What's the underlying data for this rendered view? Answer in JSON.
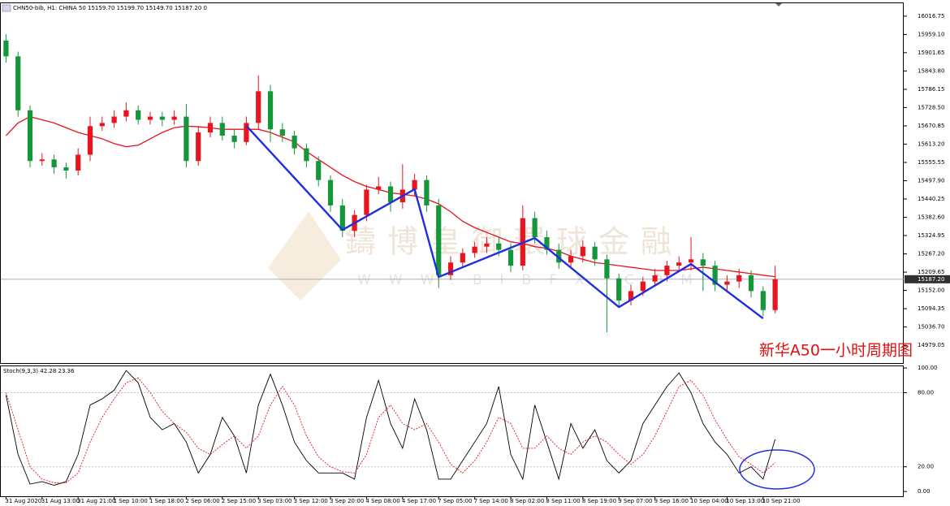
{
  "chart_data": [
    {
      "type": "candlestick",
      "header": "CHN50-bib, H1:  CHINA 50  15159.70 15199.70 15149.70 15187.20  0",
      "watermark": "鑄博皇御環球金融",
      "watermark_url": "WWW.BIBFX.COM",
      "annotation": "新华A50一小时周期图",
      "categories": [
        "31 Aug 2020",
        null,
        null,
        "31 Aug 13:00",
        null,
        null,
        "31 Aug 21:00",
        null,
        null,
        "1 Sep 10:00",
        null,
        null,
        "1 Sep 18:00",
        null,
        null,
        "2 Sep 06:00",
        null,
        null,
        "2 Sep 15:00",
        null,
        null,
        "3 Sep 03:00",
        null,
        null,
        "3 Sep 12:00",
        null,
        null,
        "3 Sep 20:00",
        null,
        null,
        "4 Sep 08:00",
        null,
        null,
        "4 Sep 17:00",
        null,
        null,
        "7 Sep 05:00",
        null,
        null,
        "7 Sep 14:00",
        null,
        null,
        "8 Sep 02:00",
        null,
        null,
        "8 Sep 11:00",
        null,
        null,
        "8 Sep 19:00",
        null,
        null,
        "9 Sep 07:00",
        null,
        null,
        "9 Sep 16:00",
        null,
        null,
        "10 Sep 04:00",
        null,
        null,
        "10 Sep 13:00",
        null,
        null,
        "10 Sep 21:00",
        null
      ],
      "xlim": [
        -0.5,
        74.7
      ],
      "candles": {
        "up_color": "#e8141e",
        "down_color": "#16963a",
        "open": [
          15940,
          15890,
          15720,
          15560,
          15565,
          15540,
          15530,
          15580,
          15670,
          15680,
          15700,
          15720,
          15690,
          15700,
          15690,
          15700,
          15560,
          15650,
          15680,
          15640,
          15620,
          15680,
          15780,
          15660,
          15640,
          15600,
          15560,
          15500,
          15420,
          15340,
          15390,
          15470,
          15480,
          15430,
          15470,
          15500,
          15420,
          15200,
          15240,
          15270,
          15290,
          15300,
          15280,
          15230,
          15380,
          15320,
          15280,
          15240,
          15260,
          15290,
          15250,
          15190,
          15120,
          15150,
          15180,
          15200,
          15230,
          15240,
          15250,
          15230,
          15170,
          15180,
          15200,
          15150,
          15090
        ],
        "high": [
          15960,
          15905,
          15735,
          15585,
          15580,
          15555,
          15600,
          15700,
          15700,
          15720,
          15745,
          15735,
          15715,
          15715,
          15720,
          15740,
          15670,
          15700,
          15700,
          15660,
          15700,
          15830,
          15800,
          15680,
          15655,
          15615,
          15575,
          15515,
          15440,
          15405,
          15485,
          15510,
          15495,
          15550,
          15520,
          15515,
          15440,
          15260,
          15285,
          15305,
          15320,
          15320,
          15300,
          15420,
          15400,
          15340,
          15300,
          15280,
          15310,
          15305,
          15265,
          15205,
          15170,
          15195,
          15220,
          15245,
          15260,
          15320,
          15270,
          15245,
          15200,
          15220,
          15215,
          15165,
          15230
        ],
        "low": [
          15870,
          15700,
          15540,
          15545,
          15520,
          15505,
          15515,
          15560,
          15655,
          15665,
          15685,
          15675,
          15675,
          15670,
          15675,
          15540,
          15545,
          15635,
          15625,
          15600,
          15610,
          15660,
          15620,
          15620,
          15580,
          15540,
          15480,
          15400,
          15320,
          15320,
          15370,
          15455,
          15400,
          15410,
          15450,
          15400,
          15160,
          15185,
          15225,
          15255,
          15270,
          15260,
          15210,
          15215,
          15300,
          15265,
          15220,
          15225,
          15240,
          15230,
          15020,
          15100,
          15105,
          15135,
          15165,
          15180,
          15210,
          15215,
          15150,
          15150,
          15145,
          15160,
          15130,
          15070,
          15080
        ],
        "close": [
          15890,
          15720,
          15560,
          15565,
          15540,
          15530,
          15580,
          15670,
          15680,
          15700,
          15720,
          15690,
          15700,
          15690,
          15700,
          15560,
          15650,
          15680,
          15640,
          15620,
          15680,
          15780,
          15660,
          15640,
          15600,
          15560,
          15500,
          15420,
          15340,
          15390,
          15470,
          15480,
          15430,
          15470,
          15500,
          15420,
          15200,
          15240,
          15270,
          15290,
          15300,
          15280,
          15230,
          15380,
          15320,
          15280,
          15240,
          15260,
          15290,
          15250,
          15190,
          15120,
          15150,
          15180,
          15200,
          15230,
          15240,
          15250,
          15230,
          15170,
          15180,
          15200,
          15150,
          15090,
          15187.2
        ]
      },
      "ma": {
        "color": "#e8141e",
        "values": [
          15640,
          15680,
          15700,
          15690,
          15680,
          15665,
          15650,
          15640,
          15630,
          15615,
          15605,
          15610,
          15630,
          15650,
          15665,
          15670,
          15668,
          15665,
          15660,
          15660,
          15660,
          15660,
          15650,
          15635,
          15620,
          15590,
          15565,
          15540,
          15515,
          15495,
          15480,
          15470,
          15460,
          15455,
          15450,
          15440,
          15425,
          15400,
          15370,
          15350,
          15335,
          15320,
          15305,
          15300,
          15290,
          15285,
          15275,
          15260,
          15250,
          15240,
          15235,
          15230,
          15225,
          15220,
          15215,
          15215,
          15215,
          15220,
          15225,
          15220,
          15215,
          15210,
          15205,
          15200,
          15195
        ]
      },
      "zigzag": {
        "color": "#1f2fe0",
        "x": [
          20,
          28,
          34,
          36,
          44,
          51,
          57,
          63
        ],
        "values": [
          15670.9,
          15342.9,
          15471.0,
          15194.3,
          15317.3,
          15099.5,
          15235.3,
          15063.7
        ]
      },
      "price_line": {
        "value": 15187.2,
        "label": "15187.20"
      },
      "ylim": [
        14923,
        16060
      ],
      "yticks": [
        16016.75,
        {
          "value": 15959.1,
          "label": "15959.10"
        },
        {
          "value": 15901.65,
          "label": "15901.65"
        },
        {
          "value": 15843.8,
          "label": "15843.80"
        },
        15786.15,
        {
          "value": 15728.5,
          "label": "15728.50"
        },
        15670.85,
        {
          "value": 15613.2,
          "label": "15613.20"
        },
        15555.55,
        {
          "value": 15497.9,
          "label": "15497.90"
        },
        15440.25,
        {
          "value": 15382.6,
          "label": "15382.60"
        },
        15324.95,
        {
          "value": 15267.2,
          "label": "15267.20"
        },
        15209.65,
        {
          "value": 15152,
          "label": "15152.00"
        },
        15094.35,
        {
          "value": 15036.7,
          "label": "15036.70"
        },
        14979.05
      ]
    },
    {
      "type": "line",
      "header": "Stoch(9,3,3) 42.28 23.36",
      "series": [
        {
          "color": "#000000",
          "style": "solid",
          "values": [
            78,
            30,
            6,
            8,
            5,
            8,
            30,
            70,
            75,
            82,
            98,
            88,
            60,
            50,
            55,
            40,
            15,
            30,
            60,
            45,
            15,
            70,
            95,
            70,
            40,
            25,
            15,
            15,
            15,
            10,
            60,
            90,
            55,
            35,
            75,
            50,
            10,
            10,
            25,
            40,
            55,
            85,
            30,
            10,
            70,
            40,
            10,
            55,
            35,
            50,
            25,
            15,
            25,
            55,
            70,
            85,
            96,
            80,
            55,
            40,
            30,
            15,
            20,
            10,
            42.28
          ]
        },
        {
          "color": "#e8141e",
          "style": "dashed",
          "values": [
            80,
            50,
            20,
            10,
            7,
            7,
            15,
            40,
            60,
            75,
            88,
            92,
            80,
            65,
            55,
            48,
            35,
            30,
            38,
            45,
            35,
            45,
            70,
            85,
            70,
            45,
            28,
            20,
            16,
            15,
            30,
            60,
            70,
            55,
            50,
            55,
            40,
            22,
            15,
            25,
            40,
            60,
            55,
            35,
            35,
            45,
            35,
            30,
            40,
            45,
            40,
            30,
            22,
            30,
            45,
            65,
            85,
            90,
            78,
            58,
            42,
            28,
            22,
            15,
            23.36
          ]
        }
      ],
      "ylim": [
        -4.5,
        102
      ],
      "yticks": [
        {
          "value": 100,
          "label": "100.00"
        },
        {
          "value": 80,
          "label": "80.00"
        },
        {
          "value": 20,
          "label": "20.00"
        },
        {
          "value": 0,
          "label": "0.00"
        }
      ],
      "grid_levels": [
        80,
        20
      ]
    }
  ]
}
